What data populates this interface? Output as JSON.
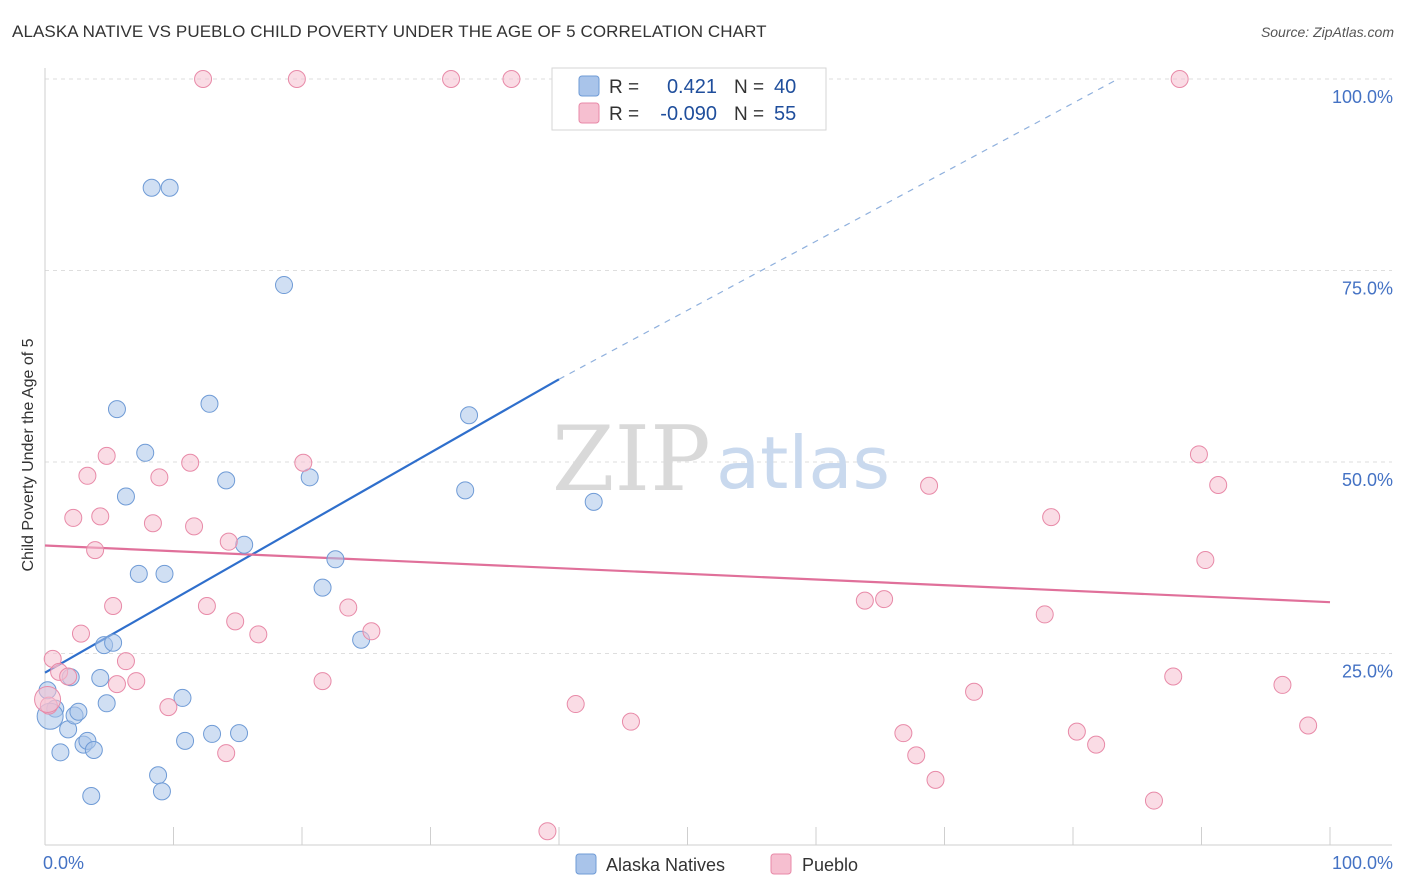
{
  "header": {
    "title": "ALASKA NATIVE VS PUEBLO CHILD POVERTY UNDER THE AGE OF 5 CORRELATION CHART",
    "source": "Source: ZipAtlas.com"
  },
  "watermark": {
    "zip": "ZIP",
    "atlas": "atlas"
  },
  "stats_legend": {
    "rows": [
      {
        "r_label": "R =",
        "r_value": "0.421",
        "n_label": "N =",
        "n_value": "40",
        "color": "#a9c4ea",
        "stroke": "#6f9bd6"
      },
      {
        "r_label": "R =",
        "r_value": "-0.090",
        "n_label": "N =",
        "n_value": "55",
        "color": "#f6bfd0",
        "stroke": "#e88aa8"
      }
    ]
  },
  "chart_data": {
    "type": "scatter",
    "title": "ALASKA NATIVE VS PUEBLO CHILD POVERTY UNDER THE AGE OF 5 CORRELATION CHART",
    "xlabel": "",
    "ylabel": "Child Poverty Under the Age of 5",
    "xlim": [
      0,
      100
    ],
    "ylim": [
      0,
      100
    ],
    "x_tick_labels": [
      "0.0%",
      "100.0%"
    ],
    "y_ticks": [
      25,
      50,
      75,
      100
    ],
    "y_tick_labels": [
      "25.0%",
      "50.0%",
      "75.0%",
      "100.0%"
    ],
    "grid": true,
    "legend": [
      "Alaska Natives",
      "Pueblo"
    ],
    "series": [
      {
        "name": "Alaska Natives",
        "color": "#a9c4ea",
        "stroke": "#6f9bd6",
        "line_color": "#2f6fcc",
        "r": 0.421,
        "n": 40,
        "trend": {
          "x0": 0,
          "y0": 22.5,
          "x1": 40,
          "y1": 60.8,
          "dash_to_x": 83.5,
          "dash_to_y": 100
        },
        "points": [
          [
            0.2,
            20.2
          ],
          [
            0.8,
            17.8
          ],
          [
            1.2,
            12.1
          ],
          [
            1.8,
            15.1
          ],
          [
            2.0,
            21.9
          ],
          [
            2.3,
            16.9
          ],
          [
            2.6,
            17.4
          ],
          [
            3.0,
            13.1
          ],
          [
            3.3,
            13.6
          ],
          [
            3.6,
            6.4
          ],
          [
            3.8,
            12.4
          ],
          [
            4.3,
            21.8
          ],
          [
            4.6,
            26.1
          ],
          [
            4.8,
            18.5
          ],
          [
            5.3,
            26.4
          ],
          [
            5.6,
            56.9
          ],
          [
            6.3,
            45.5
          ],
          [
            7.3,
            35.4
          ],
          [
            7.8,
            51.2
          ],
          [
            8.3,
            85.8
          ],
          [
            8.8,
            9.1
          ],
          [
            9.1,
            7.0
          ],
          [
            9.3,
            35.4
          ],
          [
            9.7,
            85.8
          ],
          [
            10.7,
            19.2
          ],
          [
            10.9,
            13.6
          ],
          [
            12.8,
            57.6
          ],
          [
            13.0,
            14.5
          ],
          [
            14.1,
            47.6
          ],
          [
            15.1,
            14.6
          ],
          [
            15.5,
            39.2
          ],
          [
            18.6,
            73.1
          ],
          [
            20.6,
            48.0
          ],
          [
            21.6,
            33.6
          ],
          [
            22.6,
            37.3
          ],
          [
            24.6,
            26.8
          ],
          [
            32.7,
            46.3
          ],
          [
            33.0,
            56.1
          ],
          [
            42.7,
            44.8
          ],
          [
            0.4,
            16.8
          ]
        ]
      },
      {
        "name": "Pueblo",
        "color": "#f6bfd0",
        "stroke": "#e88aa8",
        "line_color": "#e0709a",
        "r": -0.09,
        "n": 55,
        "trend": {
          "x0": 0,
          "y0": 39.1,
          "x1": 100,
          "y1": 31.7
        },
        "points": [
          [
            0.3,
            18.2
          ],
          [
            0.6,
            24.3
          ],
          [
            1.1,
            22.6
          ],
          [
            1.8,
            22.0
          ],
          [
            2.2,
            42.7
          ],
          [
            2.8,
            27.6
          ],
          [
            3.3,
            48.2
          ],
          [
            3.9,
            38.5
          ],
          [
            4.3,
            42.9
          ],
          [
            4.8,
            50.8
          ],
          [
            5.3,
            31.2
          ],
          [
            5.6,
            21.0
          ],
          [
            6.3,
            24.0
          ],
          [
            7.1,
            21.4
          ],
          [
            8.4,
            42.0
          ],
          [
            8.9,
            48.0
          ],
          [
            9.6,
            18.0
          ],
          [
            11.3,
            49.9
          ],
          [
            11.6,
            41.6
          ],
          [
            12.3,
            100
          ],
          [
            12.6,
            31.2
          ],
          [
            14.1,
            12.0
          ],
          [
            14.3,
            39.6
          ],
          [
            14.8,
            29.2
          ],
          [
            16.6,
            27.5
          ],
          [
            19.6,
            100
          ],
          [
            20.1,
            49.9
          ],
          [
            21.6,
            21.4
          ],
          [
            23.6,
            31.0
          ],
          [
            25.4,
            27.9
          ],
          [
            31.6,
            100
          ],
          [
            36.3,
            100
          ],
          [
            39.1,
            1.8
          ],
          [
            41.3,
            18.4
          ],
          [
            45.6,
            16.1
          ],
          [
            63.8,
            31.9
          ],
          [
            65.3,
            32.1
          ],
          [
            66.8,
            14.6
          ],
          [
            67.8,
            11.7
          ],
          [
            68.8,
            46.9
          ],
          [
            69.3,
            8.5
          ],
          [
            72.3,
            20.0
          ],
          [
            77.8,
            30.1
          ],
          [
            78.3,
            42.8
          ],
          [
            80.3,
            14.8
          ],
          [
            81.8,
            13.1
          ],
          [
            86.3,
            5.8
          ],
          [
            87.8,
            22.0
          ],
          [
            88.3,
            100
          ],
          [
            89.8,
            51.0
          ],
          [
            90.3,
            37.2
          ],
          [
            91.3,
            47.0
          ],
          [
            96.3,
            20.9
          ],
          [
            98.3,
            15.6
          ],
          [
            0.2,
            19.0
          ]
        ]
      }
    ]
  }
}
